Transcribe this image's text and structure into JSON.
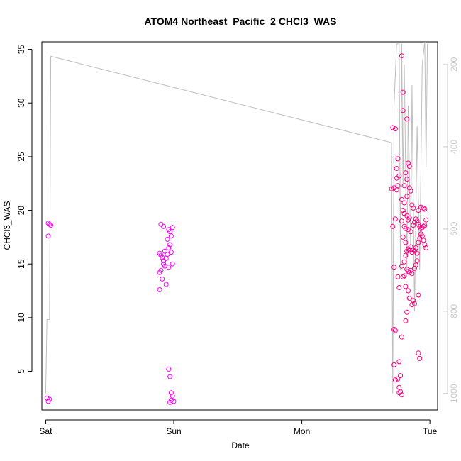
{
  "chart_data": {
    "type": "scatter",
    "title": "ATOM4 Northeast_Pacific_2 CHCl3_WAS",
    "xlabel": "Date",
    "ylabel": "CHCl3_WAS",
    "x_ticks": [
      "Sat",
      "Sun",
      "Mon",
      "Tue"
    ],
    "y_ticks": [
      5,
      10,
      15,
      20,
      25,
      30,
      35
    ],
    "y2_ticks": [
      200,
      400,
      600,
      800,
      1000
    ],
    "xlim": [
      -0.03,
      3.06
    ],
    "ylim": [
      1.4,
      35.7
    ],
    "y2lim": [
      1040,
      145
    ],
    "colors": {
      "points_magenta": "#ff00ff",
      "points_pink": "#ff0080",
      "pressure_line": "#bebebe"
    },
    "series": [
      {
        "marker": "open-circle",
        "color": "#ff00ff",
        "points": [
          [
            0.02,
            18.8
          ],
          [
            0.03,
            18.7
          ],
          [
            0.04,
            18.6
          ],
          [
            0.02,
            17.6
          ],
          [
            0.01,
            2.5
          ],
          [
            0.02,
            2.2
          ],
          [
            0.03,
            2.4
          ],
          [
            0.9,
            18.7
          ],
          [
            0.92,
            18.5
          ],
          [
            0.89,
            16.0
          ],
          [
            0.9,
            15.8
          ],
          [
            0.91,
            15.6
          ],
          [
            0.92,
            15.3
          ],
          [
            0.93,
            16.2
          ],
          [
            0.9,
            14.4
          ],
          [
            0.89,
            14.2
          ],
          [
            0.91,
            13.6
          ],
          [
            0.89,
            12.6
          ],
          [
            0.94,
            13.1
          ],
          [
            0.93,
            14.8
          ],
          [
            0.92,
            15.0
          ],
          [
            0.94,
            15.5
          ],
          [
            0.95,
            15.9
          ],
          [
            0.96,
            16.5
          ],
          [
            0.97,
            16.8
          ],
          [
            0.95,
            17.3
          ],
          [
            0.96,
            18.2
          ],
          [
            0.97,
            18.0
          ],
          [
            0.98,
            17.6
          ],
          [
            0.99,
            18.4
          ],
          [
            0.98,
            16.1
          ],
          [
            0.99,
            15.0
          ],
          [
            0.96,
            14.7
          ],
          [
            0.96,
            5.2
          ],
          [
            0.97,
            4.5
          ],
          [
            0.98,
            3.0
          ],
          [
            0.99,
            2.7
          ],
          [
            0.98,
            2.3
          ],
          [
            1.0,
            2.2
          ],
          [
            0.97,
            2.1
          ]
        ]
      },
      {
        "marker": "open-circle",
        "color": "#ff0080",
        "points": [
          [
            2.71,
            27.7
          ],
          [
            2.73,
            27.6
          ],
          [
            2.72,
            22.1
          ],
          [
            2.7,
            22.0
          ],
          [
            2.74,
            21.9
          ],
          [
            2.75,
            22.3
          ],
          [
            2.74,
            23.9
          ],
          [
            2.75,
            24.8
          ],
          [
            2.76,
            23.2
          ],
          [
            2.74,
            23.0
          ],
          [
            2.73,
            19.2
          ],
          [
            2.71,
            18.5
          ],
          [
            2.72,
            14.7
          ],
          [
            2.75,
            13.8
          ],
          [
            2.76,
            12.8
          ],
          [
            2.72,
            8.9
          ],
          [
            2.73,
            8.8
          ],
          [
            2.72,
            5.6
          ],
          [
            2.73,
            4.2
          ],
          [
            2.75,
            4.3
          ],
          [
            2.76,
            5.9
          ],
          [
            2.77,
            4.6
          ],
          [
            2.76,
            3.5
          ],
          [
            2.77,
            3.1
          ],
          [
            2.78,
            2.8
          ],
          [
            2.76,
            3.0
          ],
          [
            2.78,
            34.4
          ],
          [
            2.79,
            31.0
          ],
          [
            2.79,
            29.3
          ],
          [
            2.82,
            28.5
          ],
          [
            2.83,
            24.4
          ],
          [
            2.84,
            24.1
          ],
          [
            2.81,
            23.5
          ],
          [
            2.8,
            22.3
          ],
          [
            2.82,
            22.9
          ],
          [
            2.84,
            22.1
          ],
          [
            2.85,
            21.8
          ],
          [
            2.78,
            21.0
          ],
          [
            2.8,
            20.7
          ],
          [
            2.82,
            21.3
          ],
          [
            2.86,
            20.5
          ],
          [
            2.87,
            20.2
          ],
          [
            2.79,
            20.0
          ],
          [
            2.8,
            19.7
          ],
          [
            2.82,
            19.5
          ],
          [
            2.83,
            19.1
          ],
          [
            2.84,
            19.3
          ],
          [
            2.78,
            19.0
          ],
          [
            2.8,
            18.5
          ],
          [
            2.81,
            18.3
          ],
          [
            2.83,
            18.2
          ],
          [
            2.85,
            18.0
          ],
          [
            2.87,
            18.6
          ],
          [
            2.88,
            18.9
          ],
          [
            2.89,
            19.2
          ],
          [
            2.9,
            19.0
          ],
          [
            2.91,
            18.7
          ],
          [
            2.92,
            18.5
          ],
          [
            2.93,
            18.3
          ],
          [
            2.94,
            18.4
          ],
          [
            2.95,
            18.5
          ],
          [
            2.96,
            18.6
          ],
          [
            2.97,
            19.1
          ],
          [
            2.96,
            20.1
          ],
          [
            2.95,
            20.2
          ],
          [
            2.93,
            20.3
          ],
          [
            2.91,
            20.0
          ],
          [
            2.79,
            17.5
          ],
          [
            2.81,
            17.0
          ],
          [
            2.82,
            16.2
          ],
          [
            2.83,
            16.4
          ],
          [
            2.84,
            16.3
          ],
          [
            2.85,
            16.6
          ],
          [
            2.86,
            16.1
          ],
          [
            2.87,
            16.3
          ],
          [
            2.88,
            16.2
          ],
          [
            2.89,
            16.5
          ],
          [
            2.9,
            16.0
          ],
          [
            2.91,
            17.0
          ],
          [
            2.92,
            17.4
          ],
          [
            2.93,
            17.8
          ],
          [
            2.94,
            17.6
          ],
          [
            2.95,
            17.2
          ],
          [
            2.96,
            16.8
          ],
          [
            2.97,
            16.5
          ],
          [
            2.78,
            14.8
          ],
          [
            2.8,
            15.2
          ],
          [
            2.81,
            15.8
          ],
          [
            2.82,
            14.5
          ],
          [
            2.83,
            14.3
          ],
          [
            2.84,
            14.2
          ],
          [
            2.85,
            14.4
          ],
          [
            2.86,
            14.1
          ],
          [
            2.88,
            14.6
          ],
          [
            2.89,
            14.9
          ],
          [
            2.9,
            15.3
          ],
          [
            2.79,
            13.8
          ],
          [
            2.8,
            13.9
          ],
          [
            2.81,
            12.9
          ],
          [
            2.83,
            12.5
          ],
          [
            2.84,
            11.8
          ],
          [
            2.86,
            11.2
          ],
          [
            2.87,
            11.6
          ],
          [
            2.88,
            11.3
          ],
          [
            2.82,
            10.5
          ],
          [
            2.81,
            9.7
          ],
          [
            2.78,
            8.2
          ],
          [
            2.91,
            12.1
          ],
          [
            2.91,
            6.7
          ],
          [
            2.92,
            6.2
          ]
        ]
      }
    ],
    "pressure_line": [
      [
        0.0,
        1000
      ],
      [
        0.01,
        820
      ],
      [
        0.02,
        820
      ],
      [
        0.03,
        820
      ],
      [
        0.04,
        180
      ],
      [
        2.7,
        390
      ],
      [
        2.71,
        1000
      ],
      [
        2.72,
        300
      ],
      [
        2.74,
        150
      ],
      [
        2.76,
        150
      ],
      [
        2.77,
        700
      ],
      [
        2.78,
        150
      ],
      [
        2.79,
        500
      ],
      [
        2.8,
        200
      ],
      [
        2.82,
        700
      ],
      [
        2.83,
        300
      ],
      [
        2.85,
        650
      ],
      [
        2.86,
        250
      ],
      [
        2.88,
        800
      ],
      [
        2.9,
        350
      ],
      [
        2.92,
        700
      ],
      [
        2.94,
        200
      ],
      [
        2.96,
        145
      ],
      [
        2.97,
        450
      ],
      [
        2.98,
        150
      ]
    ]
  }
}
